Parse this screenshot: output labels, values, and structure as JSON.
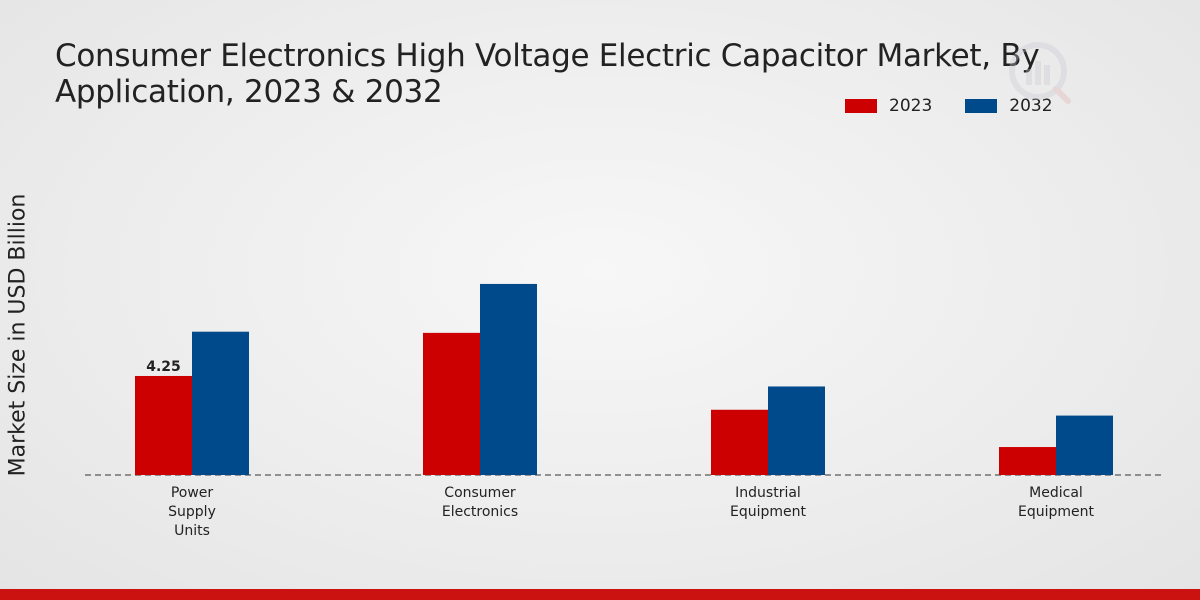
{
  "chart_data": {
    "type": "bar",
    "title": "Consumer Electronics High Voltage Electric Capacitor Market, By Application, 2023 & 2032",
    "ylabel": "Market Size in USD Billion",
    "xlabel": "",
    "categories": [
      [
        "Power",
        "Supply",
        "Units"
      ],
      [
        "Consumer",
        "Electronics"
      ],
      [
        "Industrial",
        "Equipment"
      ],
      [
        "Medical",
        "Equipment"
      ]
    ],
    "series": [
      {
        "name": "2023",
        "color": "#cc0000",
        "values": [
          4.25,
          6.1,
          2.8,
          1.2
        ]
      },
      {
        "name": "2032",
        "color": "#004a8c",
        "values": [
          6.15,
          8.2,
          3.8,
          2.55
        ]
      }
    ],
    "data_labels": [
      {
        "series": 0,
        "index": 0,
        "text": "4.25"
      }
    ],
    "ylim": [
      0,
      12
    ],
    "legend_position": "top-right",
    "grid": false
  }
}
